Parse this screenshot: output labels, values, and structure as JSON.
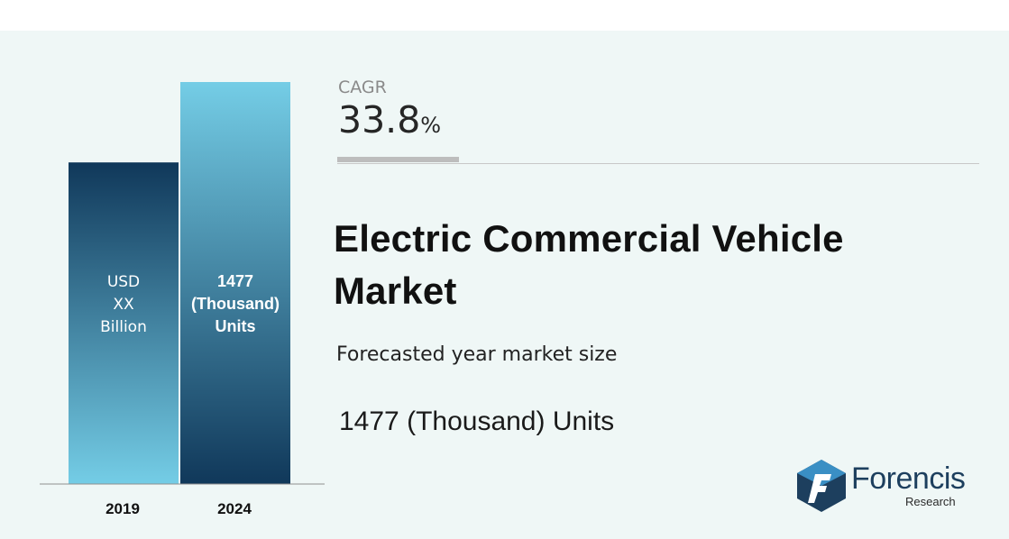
{
  "chart_data": {
    "type": "bar",
    "categories": [
      "2019",
      "2024"
    ],
    "values": [
      null,
      1477
    ],
    "bar_labels": [
      [
        "USD",
        "XX",
        "Billion"
      ],
      [
        "1477",
        "(Thousand)",
        "Units"
      ]
    ],
    "title": "Electric Commercial Vehicle Market",
    "xlabel": "",
    "ylabel": "",
    "grid": false
  },
  "cagr": {
    "label": "CAGR",
    "value": "33.8",
    "unit": "%"
  },
  "subtitle": "Forecasted year market size",
  "market_size": "1477 (Thousand) Units",
  "logo": {
    "name": "Forencis",
    "sub": "Research"
  },
  "colors": {
    "bar_2019_top": "#10385a",
    "bar_2019_bottom": "#74cde6",
    "bar_2024_top": "#74cde6",
    "bar_2024_bottom": "#10385a",
    "accent": "#1d3f5e"
  }
}
